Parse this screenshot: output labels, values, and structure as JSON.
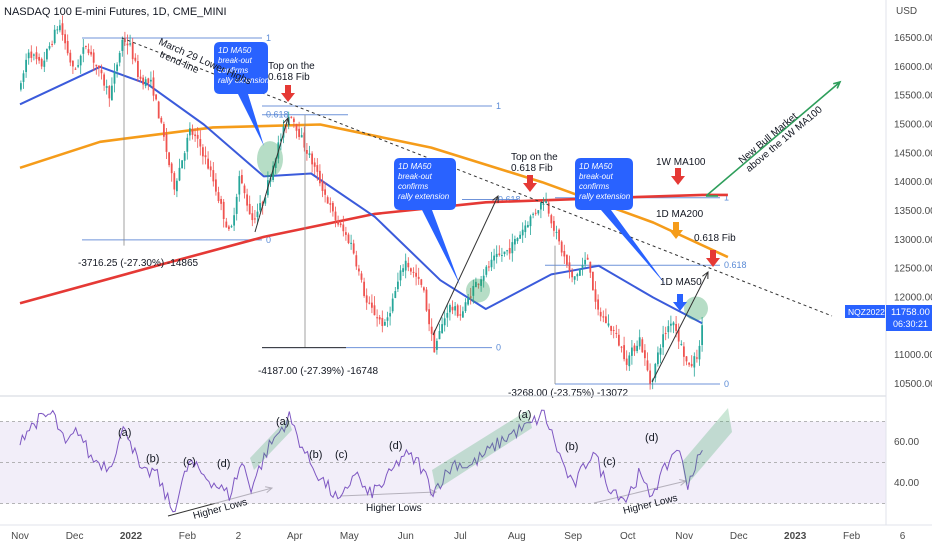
{
  "header": {
    "title": "NASDAQ 100 E-mini Futures, 1D, CME_MINI",
    "currency": "USD"
  },
  "colors": {
    "up": "#26a69a",
    "down": "#ef5350",
    "ma50": "#3b5bdb",
    "ma100": "#e53935",
    "ma200": "#f59c1a",
    "fib": "#6f93d9",
    "rsi": "#7e57c2",
    "rsi_band": "#ede7f6",
    "green": "#2e9e5b",
    "badge": "#2962ff"
  },
  "price_label": {
    "symbol": "NQZ2022",
    "price": "11758.00",
    "countdown": "06:30:21"
  },
  "chart_data": {
    "type": "candlestick",
    "title": "NASDAQ 100 E-mini Futures, 1D, CME_MINI",
    "y_axis": {
      "unit": "USD",
      "ticks": [
        "16500.00",
        "16000.00",
        "15500.00",
        "15000.00",
        "14500.00",
        "14000.00",
        "13500.00",
        "13000.00",
        "12500.00",
        "12000.00",
        "11000.00",
        "10500.00"
      ],
      "range": [
        10300,
        17150
      ]
    },
    "x_axis": {
      "ticks": [
        "Nov",
        "Dec",
        "2022",
        "Feb",
        "2",
        "Apr",
        "May",
        "Jun",
        "Jul",
        "Aug",
        "Sep",
        "Oct",
        "Nov",
        "Dec",
        "2023",
        "Feb",
        "6"
      ]
    },
    "price_path": [
      [
        "2021-11-01",
        15650
      ],
      [
        "2021-11-05",
        16300
      ],
      [
        "2021-11-12",
        16000
      ],
      [
        "2021-11-22",
        16760
      ],
      [
        "2021-11-30",
        15900
      ],
      [
        "2021-12-07",
        16400
      ],
      [
        "2021-12-14",
        15900
      ],
      [
        "2021-12-20",
        15500
      ],
      [
        "2021-12-27",
        16500
      ],
      [
        "2021-12-31",
        16350
      ],
      [
        "2022-01-05",
        15800
      ],
      [
        "2022-01-12",
        15700
      ],
      [
        "2022-01-19",
        14700
      ],
      [
        "2022-01-24",
        13900
      ],
      [
        "2022-02-02",
        14900
      ],
      [
        "2022-02-08",
        14600
      ],
      [
        "2022-02-14",
        14100
      ],
      [
        "2022-02-24",
        13050
      ],
      [
        "2022-03-01",
        14100
      ],
      [
        "2022-03-08",
        13350
      ],
      [
        "2022-03-14",
        13650
      ],
      [
        "2022-03-22",
        14600
      ],
      [
        "2022-03-29",
        15220
      ],
      [
        "2022-04-05",
        14700
      ],
      [
        "2022-04-12",
        14200
      ],
      [
        "2022-04-22",
        13400
      ],
      [
        "2022-05-02",
        12900
      ],
      [
        "2022-05-10",
        11900
      ],
      [
        "2022-05-20",
        11500
      ],
      [
        "2022-05-31",
        12650
      ],
      [
        "2022-06-10",
        12150
      ],
      [
        "2022-06-16",
        11100
      ],
      [
        "2022-06-24",
        11850
      ],
      [
        "2022-07-01",
        11700
      ],
      [
        "2022-07-08",
        12200
      ],
      [
        "2022-07-19",
        12650
      ],
      [
        "2022-07-28",
        12850
      ],
      [
        "2022-08-05",
        13250
      ],
      [
        "2022-08-16",
        13720
      ],
      [
        "2022-08-22",
        13100
      ],
      [
        "2022-08-31",
        12300
      ],
      [
        "2022-09-09",
        12700
      ],
      [
        "2022-09-13",
        11800
      ],
      [
        "2022-09-23",
        11400
      ],
      [
        "2022-09-30",
        10900
      ],
      [
        "2022-10-07",
        11300
      ],
      [
        "2022-10-13",
        10500
      ],
      [
        "2022-10-19",
        11250
      ],
      [
        "2022-10-25",
        11650
      ],
      [
        "2022-11-03",
        10750
      ],
      [
        "2022-11-09",
        11100
      ],
      [
        "2022-11-11",
        11758
      ]
    ],
    "series": [
      {
        "name": "1D MA50",
        "points": [
          [
            "2021-11-01",
            15350
          ],
          [
            "2021-12-15",
            16000
          ],
          [
            "2022-01-10",
            15700
          ],
          [
            "2022-02-10",
            15000
          ],
          [
            "2022-03-15",
            14100
          ],
          [
            "2022-04-10",
            14150
          ],
          [
            "2022-05-15",
            13400
          ],
          [
            "2022-06-20",
            12300
          ],
          [
            "2022-07-15",
            11800
          ],
          [
            "2022-08-20",
            12400
          ],
          [
            "2022-09-15",
            12550
          ],
          [
            "2022-10-15",
            12000
          ],
          [
            "2022-11-11",
            11550
          ]
        ]
      },
      {
        "name": "1W MA100",
        "points": [
          [
            "2021-11-01",
            11900
          ],
          [
            "2022-01-15",
            12550
          ],
          [
            "2022-03-15",
            13050
          ],
          [
            "2022-05-15",
            13450
          ],
          [
            "2022-07-15",
            13650
          ],
          [
            "2022-09-15",
            13720
          ],
          [
            "2022-11-11",
            13780
          ],
          [
            "2022-11-25",
            13780
          ]
        ]
      },
      {
        "name": "1D MA200",
        "points": [
          [
            "2021-11-01",
            14250
          ],
          [
            "2021-12-15",
            14700
          ],
          [
            "2022-02-15",
            14950
          ],
          [
            "2022-04-15",
            15000
          ],
          [
            "2022-06-15",
            14600
          ],
          [
            "2022-08-15",
            14000
          ],
          [
            "2022-10-15",
            13300
          ],
          [
            "2022-11-25",
            12700
          ]
        ]
      }
    ],
    "annotations": [
      "March 29 Lower Highs trend-line",
      "Top on the 0.618 Fib",
      "Top on the 0.618 Fib",
      "1W MA100",
      "1D MA200",
      "0.618 Fib",
      "1D MA50",
      "New Bull Market above the 1W MA100",
      "-3716.25 (-27.30%) -14865",
      "-4187.00 (-27.39%) -16748",
      "-3268.00 (-23.75%) -13072",
      "Higher Lows",
      "Higher Lows",
      "Higher Lows"
    ],
    "rsi": {
      "ticks": [
        "60.00",
        "40.00"
      ],
      "range": [
        20,
        80
      ],
      "values": [
        [
          "2021-11-01",
          62
        ],
        [
          "2021-11-10",
          70
        ],
        [
          "2021-11-19",
          74
        ],
        [
          "2021-11-26",
          58
        ],
        [
          "2021-12-03",
          66
        ],
        [
          "2021-12-10",
          52
        ],
        [
          "2021-12-20",
          48
        ],
        [
          "2021-12-29",
          68
        ],
        [
          "2022-01-07",
          44
        ],
        [
          "2022-01-14",
          46
        ],
        [
          "2022-01-24",
          26
        ],
        [
          "2022-02-02",
          50
        ],
        [
          "2022-02-10",
          44
        ],
        [
          "2022-02-24",
          34
        ],
        [
          "2022-03-03",
          50
        ],
        [
          "2022-03-08",
          38
        ],
        [
          "2022-03-18",
          58
        ],
        [
          "2022-03-29",
          72
        ],
        [
          "2022-04-08",
          52
        ],
        [
          "2022-04-14",
          44
        ],
        [
          "2022-04-26",
          30
        ],
        [
          "2022-05-04",
          46
        ],
        [
          "2022-05-11",
          34
        ],
        [
          "2022-05-20",
          40
        ],
        [
          "2022-05-31",
          54
        ],
        [
          "2022-06-08",
          50
        ],
        [
          "2022-06-16",
          36
        ],
        [
          "2022-06-28",
          50
        ],
        [
          "2022-07-06",
          48
        ],
        [
          "2022-07-20",
          58
        ],
        [
          "2022-07-29",
          64
        ],
        [
          "2022-08-08",
          68
        ],
        [
          "2022-08-16",
          74
        ],
        [
          "2022-08-26",
          50
        ],
        [
          "2022-09-01",
          38
        ],
        [
          "2022-09-12",
          56
        ],
        [
          "2022-09-19",
          40
        ],
        [
          "2022-09-30",
          32
        ],
        [
          "2022-10-07",
          44
        ],
        [
          "2022-10-13",
          34
        ],
        [
          "2022-10-20",
          44
        ],
        [
          "2022-10-28",
          58
        ],
        [
          "2022-11-03",
          40
        ],
        [
          "2022-11-11",
          56
        ]
      ],
      "labels": [
        "(a)",
        "(b)",
        "(c)",
        "(d)",
        "(a)",
        "(b)",
        "(c)",
        "(d)",
        "(a)",
        "(b)",
        "(c)",
        "(d)"
      ]
    }
  },
  "fib_levels": {
    "first": [
      "1",
      "0"
    ],
    "second": [
      "0.618",
      "1",
      "0"
    ],
    "third": [
      "0.618",
      "1",
      "0.618",
      "0"
    ]
  },
  "bubbles": [
    [
      "1D MA50",
      "break-out",
      "confirms",
      "rally extension"
    ],
    [
      "1D MA50",
      "break-out",
      "confirms",
      "rally extension"
    ],
    [
      "1D MA50",
      "break-out",
      "confirms",
      "rally extension"
    ]
  ]
}
